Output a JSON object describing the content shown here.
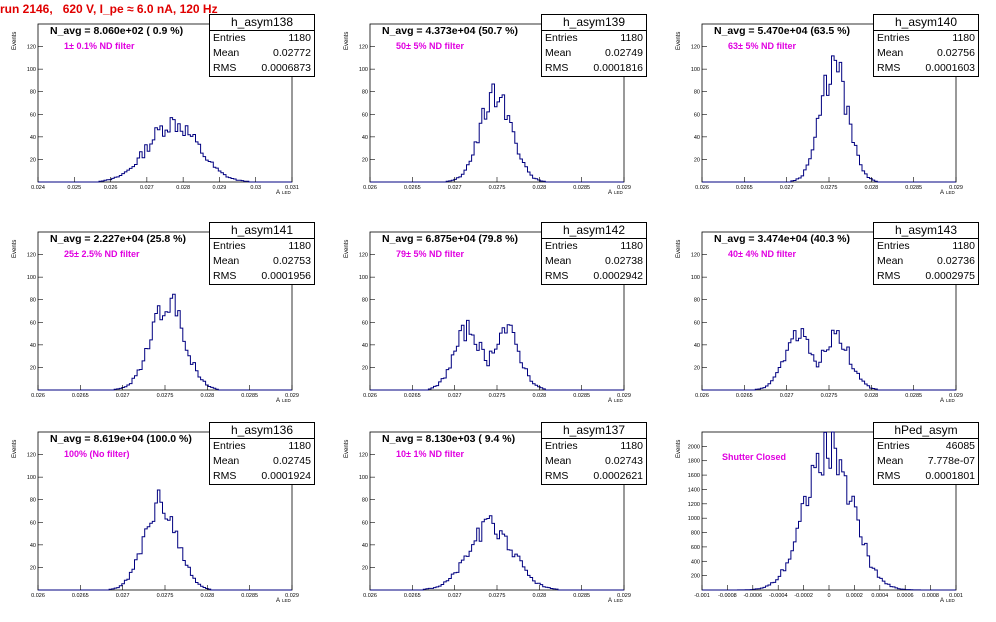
{
  "page_title": "run 2146,   620 V, I_pe ≈ 6.0 nA, 120 Hz",
  "axis": {
    "ylabel": "Events",
    "xlabel": "A",
    "xlabel_sub": "LED"
  },
  "colors": {
    "hist": "#000080",
    "title": "#e00000",
    "filter": "#e000e0"
  },
  "chart_data": [
    {
      "type": "bar",
      "name": "h_asym138",
      "n_avg": "N_avg = 8.060e+02 ( 0.9 %)",
      "filter": "1± 0.1% ND filter",
      "stats": {
        "entries_label": "Entries",
        "entries": "1180",
        "mean_label": "Mean",
        "mean": "0.02772",
        "rms_label": "RMS",
        "rms": "0.0006873"
      },
      "xlim": [
        0.024,
        0.031
      ],
      "ylim": [
        0,
        140
      ],
      "xticks": [
        "0.024",
        "0.025",
        "0.026",
        "0.027",
        "0.028",
        "0.029",
        "0.03",
        "0.031"
      ],
      "xtick_values": [
        0.024,
        0.025,
        0.026,
        0.027,
        0.028,
        0.029,
        0.03,
        0.031
      ],
      "yticks": [
        "20",
        "40",
        "60",
        "80",
        "100",
        "120"
      ],
      "ytick_values": [
        20,
        40,
        60,
        80,
        100,
        120
      ],
      "mean_value": 0.02772,
      "rms_value": 0.0006873,
      "peak": 54
    },
    {
      "type": "bar",
      "name": "h_asym139",
      "n_avg": "N_avg = 4.373e+04 (50.7 %)",
      "filter": "50± 5% ND filter",
      "stats": {
        "entries_label": "Entries",
        "entries": "1180",
        "mean_label": "Mean",
        "mean": "0.02749",
        "rms_label": "RMS",
        "rms": "0.0001816"
      },
      "xlim": [
        0.026,
        0.029
      ],
      "ylim": [
        0,
        140
      ],
      "xticks": [
        "0.026",
        "0.0265",
        "0.027",
        "0.0275",
        "0.028",
        "0.0285",
        "0.029"
      ],
      "xtick_values": [
        0.026,
        0.0265,
        0.027,
        0.0275,
        0.028,
        0.0285,
        0.029
      ],
      "yticks": [
        "20",
        "40",
        "60",
        "80",
        "100",
        "120"
      ],
      "ytick_values": [
        20,
        40,
        60,
        80,
        100,
        120
      ],
      "mean_value": 0.02749,
      "rms_value": 0.0001816,
      "peak": 82
    },
    {
      "type": "bar",
      "name": "h_asym140",
      "n_avg": "N_avg = 5.470e+04 (63.5 %)",
      "filter": "63± 5% ND filter",
      "stats": {
        "entries_label": "Entries",
        "entries": "1180",
        "mean_label": "Mean",
        "mean": "0.02756",
        "rms_label": "RMS",
        "rms": "0.0001603"
      },
      "xlim": [
        0.026,
        0.029
      ],
      "ylim": [
        0,
        140
      ],
      "xticks": [
        "0.026",
        "0.0265",
        "0.027",
        "0.0275",
        "0.028",
        "0.0285",
        "0.029"
      ],
      "xtick_values": [
        0.026,
        0.0265,
        0.027,
        0.0275,
        0.028,
        0.0285,
        0.029
      ],
      "yticks": [
        "20",
        "40",
        "60",
        "80",
        "100",
        "120"
      ],
      "ytick_values": [
        20,
        40,
        60,
        80,
        100,
        120
      ],
      "mean_value": 0.02756,
      "rms_value": 0.0001603,
      "peak": 104
    },
    {
      "type": "bar",
      "name": "h_asym141",
      "n_avg": "N_avg = 2.227e+04 (25.8 %)",
      "filter": "25± 2.5% ND filter",
      "stats": {
        "entries_label": "Entries",
        "entries": "1180",
        "mean_label": "Mean",
        "mean": "0.02753",
        "rms_label": "RMS",
        "rms": "0.0001956"
      },
      "xlim": [
        0.026,
        0.029
      ],
      "ylim": [
        0,
        140
      ],
      "xticks": [
        "0.026",
        "0.0265",
        "0.027",
        "0.0275",
        "0.028",
        "0.0285",
        "0.029"
      ],
      "xtick_values": [
        0.026,
        0.0265,
        0.027,
        0.0275,
        0.028,
        0.0285,
        0.029
      ],
      "yticks": [
        "20",
        "40",
        "60",
        "80",
        "100",
        "120"
      ],
      "ytick_values": [
        20,
        40,
        60,
        80,
        100,
        120
      ],
      "mean_value": 0.02753,
      "rms_value": 0.0001956,
      "peak": 81
    },
    {
      "type": "bar",
      "name": "h_asym142",
      "n_avg": "N_avg = 6.875e+04 (79.8 %)",
      "filter": "79± 5% ND filter",
      "stats": {
        "entries_label": "Entries",
        "entries": "1180",
        "mean_label": "Mean",
        "mean": "0.02738",
        "rms_label": "RMS",
        "rms": "0.0002942"
      },
      "xlim": [
        0.026,
        0.029
      ],
      "ylim": [
        0,
        140
      ],
      "xticks": [
        "0.026",
        "0.0265",
        "0.027",
        "0.0275",
        "0.028",
        "0.0285",
        "0.029"
      ],
      "xtick_values": [
        0.026,
        0.0265,
        0.027,
        0.0275,
        0.028,
        0.0285,
        0.029
      ],
      "yticks": [
        "20",
        "40",
        "60",
        "80",
        "100",
        "120"
      ],
      "ytick_values": [
        20,
        40,
        60,
        80,
        100,
        120
      ],
      "mean_value": 0.02738,
      "rms_value": 0.0002942,
      "peak": 52,
      "bimodal": true
    },
    {
      "type": "bar",
      "name": "h_asym143",
      "n_avg": "N_avg = 3.474e+04 (40.3 %)",
      "filter": "40± 4% ND filter",
      "stats": {
        "entries_label": "Entries",
        "entries": "1180",
        "mean_label": "Mean",
        "mean": "0.02736",
        "rms_label": "RMS",
        "rms": "0.0002975"
      },
      "xlim": [
        0.026,
        0.029
      ],
      "ylim": [
        0,
        140
      ],
      "xticks": [
        "0.026",
        "0.0265",
        "0.027",
        "0.0275",
        "0.028",
        "0.0285",
        "0.029"
      ],
      "xtick_values": [
        0.026,
        0.0265,
        0.027,
        0.0275,
        0.028,
        0.0285,
        0.029
      ],
      "yticks": [
        "20",
        "40",
        "60",
        "80",
        "100",
        "120"
      ],
      "ytick_values": [
        20,
        40,
        60,
        80,
        100,
        120
      ],
      "mean_value": 0.02736,
      "rms_value": 0.0002975,
      "peak": 47,
      "bimodal": true
    },
    {
      "type": "bar",
      "name": "h_asym136",
      "n_avg": "N_avg = 8.619e+04 (100.0 %)",
      "filter": "100% (No filter)",
      "stats": {
        "entries_label": "Entries",
        "entries": "1180",
        "mean_label": "Mean",
        "mean": "0.02745",
        "rms_label": "RMS",
        "rms": "0.0001924"
      },
      "xlim": [
        0.026,
        0.029
      ],
      "ylim": [
        0,
        140
      ],
      "xticks": [
        "0.026",
        "0.0265",
        "0.027",
        "0.0275",
        "0.028",
        "0.0285",
        "0.029"
      ],
      "xtick_values": [
        0.026,
        0.0265,
        0.027,
        0.0275,
        0.028,
        0.0285,
        0.029
      ],
      "yticks": [
        "20",
        "40",
        "60",
        "80",
        "100",
        "120"
      ],
      "ytick_values": [
        20,
        40,
        60,
        80,
        100,
        120
      ],
      "mean_value": 0.02745,
      "rms_value": 0.0001924,
      "peak": 80
    },
    {
      "type": "bar",
      "name": "h_asym137",
      "n_avg": "N_avg = 8.130e+03 ( 9.4 %)",
      "filter": "10± 1% ND filter",
      "stats": {
        "entries_label": "Entries",
        "entries": "1180",
        "mean_label": "Mean",
        "mean": "0.02743",
        "rms_label": "RMS",
        "rms": "0.0002621"
      },
      "xlim": [
        0.026,
        0.029
      ],
      "ylim": [
        0,
        140
      ],
      "xticks": [
        "0.026",
        "0.0265",
        "0.027",
        "0.0275",
        "0.028",
        "0.0285",
        "0.029"
      ],
      "xtick_values": [
        0.026,
        0.0265,
        0.027,
        0.0275,
        0.028,
        0.0285,
        0.029
      ],
      "yticks": [
        "20",
        "40",
        "60",
        "80",
        "100",
        "120"
      ],
      "ytick_values": [
        20,
        40,
        60,
        80,
        100,
        120
      ],
      "mean_value": 0.02743,
      "rms_value": 0.0002621,
      "peak": 58
    },
    {
      "type": "bar",
      "name": "hPed_asym",
      "n_avg": "",
      "filter": "Shutter Closed",
      "stats": {
        "entries_label": "Entries",
        "entries": "46085",
        "mean_label": "Mean",
        "mean": "7.778e-07",
        "rms_label": "RMS",
        "rms": "0.0001801"
      },
      "xlim": [
        -0.001,
        0.001
      ],
      "ylim": [
        0,
        2200
      ],
      "xticks": [
        "-0.001",
        "-0.0008",
        "-0.0006",
        "-0.0004",
        "-0.0002",
        "0",
        "0.0002",
        "0.0004",
        "0.0006",
        "0.0008",
        "0.001"
      ],
      "xtick_values": [
        -0.001,
        -0.0008,
        -0.0006,
        -0.0004,
        -0.0002,
        0,
        0.0002,
        0.0004,
        0.0006,
        0.0008,
        0.001
      ],
      "yticks": [
        "200",
        "400",
        "600",
        "800",
        "1000",
        "1200",
        "1400",
        "1600",
        "1800",
        "2000"
      ],
      "ytick_values": [
        200,
        400,
        600,
        800,
        1000,
        1200,
        1400,
        1600,
        1800,
        2000
      ],
      "mean_value": 7.778e-07,
      "rms_value": 0.0001801,
      "peak": 2080
    }
  ]
}
